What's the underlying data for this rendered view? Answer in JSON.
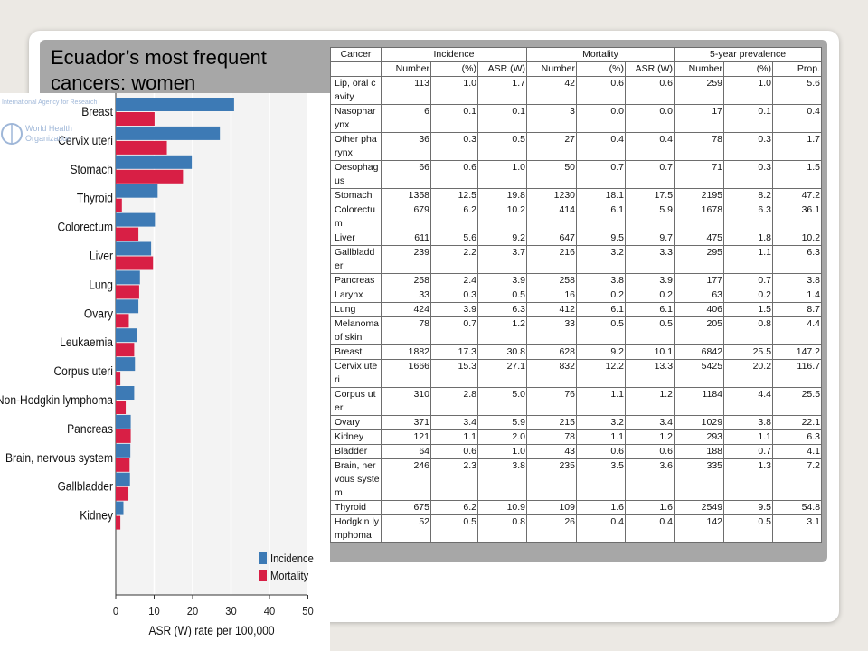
{
  "title": "Ecuador’s most frequent cancers: women",
  "chart_data": {
    "type": "bar",
    "orientation": "horizontal",
    "categories": [
      "Breast",
      "Cervix uteri",
      "Stomach",
      "Thyroid",
      "Colorectum",
      "Liver",
      "Lung",
      "Ovary",
      "Leukaemia",
      "Corpus uteri",
      "Non-Hodgkin lymphoma",
      "Pancreas",
      "Brain, nervous system",
      "Gallbladder",
      "Kidney"
    ],
    "series": [
      {
        "name": "Incidence",
        "color": "#3d7ab5",
        "values": [
          30.8,
          27.1,
          19.8,
          10.9,
          10.2,
          9.2,
          6.3,
          5.9,
          5.5,
          5.0,
          4.8,
          3.9,
          3.8,
          3.7,
          2.0
        ]
      },
      {
        "name": "Mortality",
        "color": "#d81f45",
        "values": [
          10.1,
          13.3,
          17.5,
          1.6,
          5.9,
          9.7,
          6.1,
          3.4,
          4.8,
          1.2,
          2.6,
          3.9,
          3.6,
          3.3,
          1.2
        ]
      }
    ],
    "x_ticks": [
      "0",
      "10",
      "20",
      "30",
      "40",
      "50"
    ],
    "xlim": [
      0,
      50
    ],
    "xlabel": "ASR (W) rate per 100,000",
    "legend_position": "bottom-right",
    "logo_text": [
      "International Agency for Research",
      "World Health",
      "Organization"
    ]
  },
  "table": {
    "group_headers": [
      "Cancer",
      "Incidence",
      "Mortality",
      "5-year prevalence"
    ],
    "sub_headers": [
      "",
      "Number",
      "(%)",
      "ASR (W)",
      "Number",
      "(%)",
      "ASR (W)",
      "Number",
      "(%)",
      "Prop."
    ],
    "rows": [
      [
        "Lip, oral cavity",
        "113",
        "1.0",
        "1.7",
        "42",
        "0.6",
        "0.6",
        "259",
        "1.0",
        "5.6"
      ],
      [
        "Nasopharynx",
        "6",
        "0.1",
        "0.1",
        "3",
        "0.0",
        "0.0",
        "17",
        "0.1",
        "0.4"
      ],
      [
        "Other pharynx",
        "36",
        "0.3",
        "0.5",
        "27",
        "0.4",
        "0.4",
        "78",
        "0.3",
        "1.7"
      ],
      [
        "Oesophagus",
        "66",
        "0.6",
        "1.0",
        "50",
        "0.7",
        "0.7",
        "71",
        "0.3",
        "1.5"
      ],
      [
        "Stomach",
        "1358",
        "12.5",
        "19.8",
        "1230",
        "18.1",
        "17.5",
        "2195",
        "8.2",
        "47.2"
      ],
      [
        "Colorectum",
        "679",
        "6.2",
        "10.2",
        "414",
        "6.1",
        "5.9",
        "1678",
        "6.3",
        "36.1"
      ],
      [
        "Liver",
        "611",
        "5.6",
        "9.2",
        "647",
        "9.5",
        "9.7",
        "475",
        "1.8",
        "10.2"
      ],
      [
        "Gallbladder",
        "239",
        "2.2",
        "3.7",
        "216",
        "3.2",
        "3.3",
        "295",
        "1.1",
        "6.3"
      ],
      [
        "Pancreas",
        "258",
        "2.4",
        "3.9",
        "258",
        "3.8",
        "3.9",
        "177",
        "0.7",
        "3.8"
      ],
      [
        "Larynx",
        "33",
        "0.3",
        "0.5",
        "16",
        "0.2",
        "0.2",
        "63",
        "0.2",
        "1.4"
      ],
      [
        "Lung",
        "424",
        "3.9",
        "6.3",
        "412",
        "6.1",
        "6.1",
        "406",
        "1.5",
        "8.7"
      ],
      [
        "Melanoma of skin",
        "78",
        "0.7",
        "1.2",
        "33",
        "0.5",
        "0.5",
        "205",
        "0.8",
        "4.4"
      ],
      [
        "Breast",
        "1882",
        "17.3",
        "30.8",
        "628",
        "9.2",
        "10.1",
        "6842",
        "25.5",
        "147.2"
      ],
      [
        "Cervix uteri",
        "1666",
        "15.3",
        "27.1",
        "832",
        "12.2",
        "13.3",
        "5425",
        "20.2",
        "116.7"
      ],
      [
        "Corpus uteri",
        "310",
        "2.8",
        "5.0",
        "76",
        "1.1",
        "1.2",
        "1184",
        "4.4",
        "25.5"
      ],
      [
        "Ovary",
        "371",
        "3.4",
        "5.9",
        "215",
        "3.2",
        "3.4",
        "1029",
        "3.8",
        "22.1"
      ],
      [
        "Kidney",
        "121",
        "1.1",
        "2.0",
        "78",
        "1.1",
        "1.2",
        "293",
        "1.1",
        "6.3"
      ],
      [
        "Bladder",
        "64",
        "0.6",
        "1.0",
        "43",
        "0.6",
        "0.6",
        "188",
        "0.7",
        "4.1"
      ],
      [
        "Brain, nervous system",
        "246",
        "2.3",
        "3.8",
        "235",
        "3.5",
        "3.6",
        "335",
        "1.3",
        "7.2"
      ],
      [
        "Thyroid",
        "675",
        "6.2",
        "10.9",
        "109",
        "1.6",
        "1.6",
        "2549",
        "9.5",
        "54.8"
      ],
      [
        "Hodgkin lymphoma",
        "52",
        "0.5",
        "0.8",
        "26",
        "0.4",
        "0.4",
        "142",
        "0.5",
        "3.1"
      ]
    ]
  }
}
